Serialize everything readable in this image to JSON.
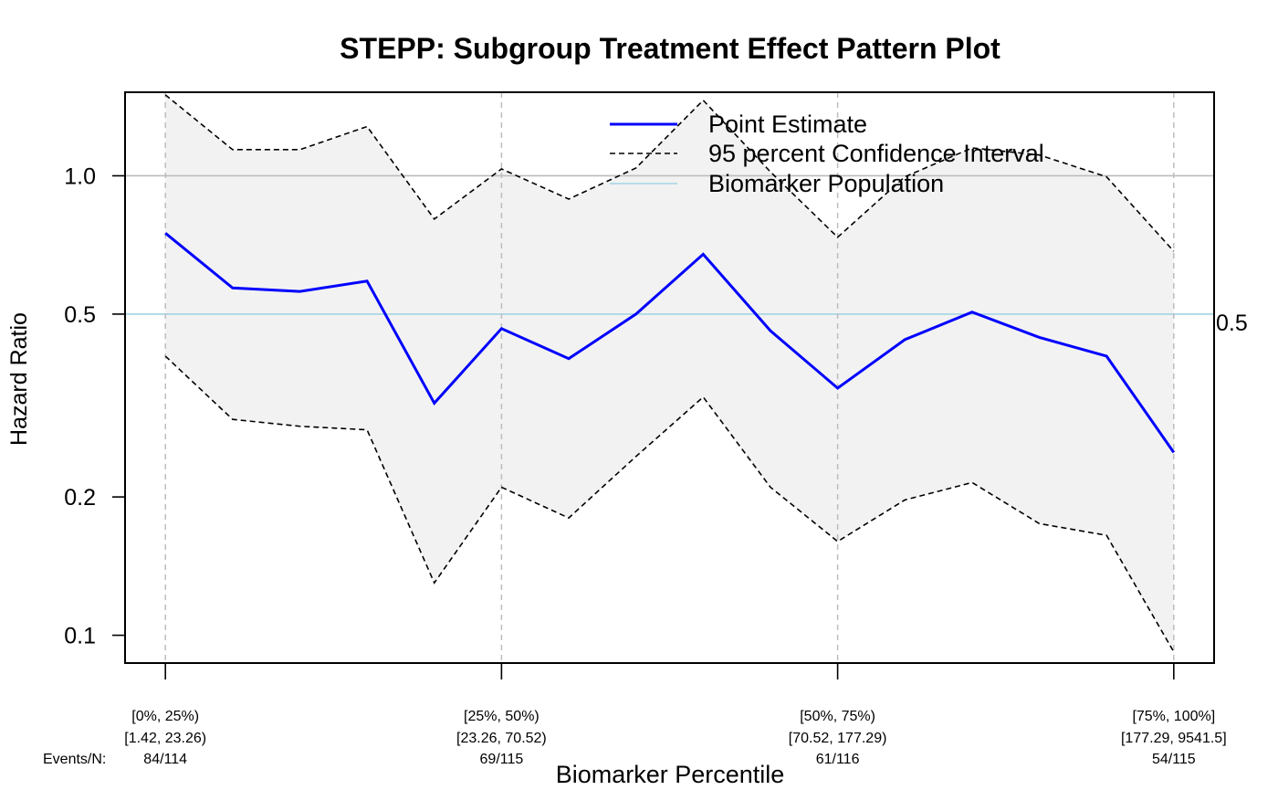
{
  "chart_data": {
    "type": "line",
    "title": "STEPP: Subgroup Treatment Effect Pattern Plot",
    "xlabel": "Biomarker Percentile",
    "ylabel": "Hazard Ratio",
    "y_scale": "log",
    "ylim": [
      0.087,
      1.52
    ],
    "y_ticks": [
      0.1,
      0.2,
      0.5,
      1.0
    ],
    "y_tick_labels": [
      "0.1",
      "0.2",
      "0.5",
      "1.0"
    ],
    "right_axis_label": "0.5",
    "x": [
      1,
      2,
      3,
      4,
      5,
      6,
      7,
      8,
      9,
      10,
      11,
      12,
      13,
      14,
      15,
      16
    ],
    "xlim": [
      0.4,
      16.6
    ],
    "series": [
      {
        "name": "Point Estimate",
        "color": "#0000ff",
        "style": "solid",
        "values": [
          0.75,
          0.57,
          0.56,
          0.59,
          0.32,
          0.465,
          0.4,
          0.5,
          0.675,
          0.46,
          0.345,
          0.44,
          0.505,
          0.445,
          0.405,
          0.25
        ]
      },
      {
        "name": "95 percent Confidence Interval",
        "role": "upper",
        "color": "#000000",
        "style": "dashed",
        "values": [
          1.5,
          1.14,
          1.14,
          1.28,
          0.805,
          1.035,
          0.89,
          1.04,
          1.46,
          1.02,
          0.735,
          0.995,
          1.15,
          1.11,
          0.995,
          0.685
        ]
      },
      {
        "name": "95 percent Confidence Interval",
        "role": "lower",
        "color": "#000000",
        "style": "dashed",
        "values": [
          0.405,
          0.295,
          0.285,
          0.28,
          0.13,
          0.21,
          0.18,
          0.245,
          0.33,
          0.21,
          0.16,
          0.197,
          0.215,
          0.175,
          0.165,
          0.092
        ]
      },
      {
        "name": "Biomarker Population",
        "color": "#add8e6",
        "style": "hline",
        "value": 0.5
      }
    ],
    "reference_line": 1.0,
    "band_fill": "#f2f2f2",
    "legend_position": "top-right",
    "grid": "vertical dashed at subgroup boundaries",
    "subgroups": [
      {
        "x": 1,
        "percentile": "[0%, 25%)",
        "range": "[1.42, 23.26)",
        "events": "84/114"
      },
      {
        "x": 6,
        "percentile": "[25%, 50%)",
        "range": "[23.26, 70.52)",
        "events": "69/115"
      },
      {
        "x": 11,
        "percentile": "[50%, 75%)",
        "range": "[70.52, 177.29)",
        "events": "61/116"
      },
      {
        "x": 16,
        "percentile": "[75%, 100%]",
        "range": "[177.29, 9541.5]",
        "events": "54/115"
      }
    ],
    "events_label": "Events/N:"
  }
}
